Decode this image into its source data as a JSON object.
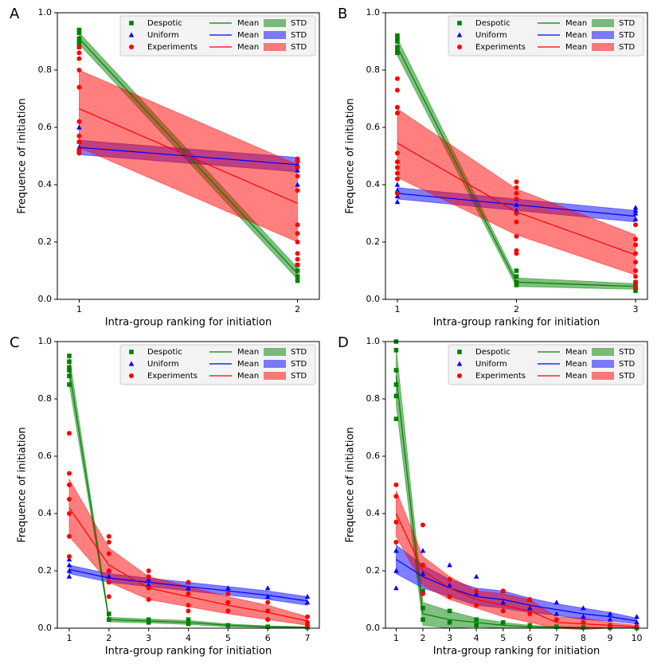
{
  "chart_data": [
    {
      "type": "line",
      "panel": "A",
      "xlabel": "Intra-group ranking for initiation",
      "ylabel": "Frequence of initiation",
      "x": [
        1,
        2
      ],
      "xlim": [
        0.9,
        2.1
      ],
      "xticks": [
        1,
        2
      ],
      "ylim": [
        0,
        1
      ],
      "yticks": [
        {
          "value": 0,
          "label": "0.0"
        },
        {
          "value": 0.2,
          "label": "0.2"
        },
        {
          "value": 0.4,
          "label": "0.4"
        },
        {
          "value": 0.6,
          "label": "0.6"
        },
        {
          "value": 0.8,
          "label": "0.8"
        },
        {
          "value": 1,
          "label": "1.0"
        }
      ],
      "series": [
        {
          "name": "Despotic",
          "mean_label": "Mean",
          "std_label": "STD",
          "color": "#008000",
          "marker": "square",
          "mean": [
            0.91,
            0.09
          ],
          "std": [
            0.02,
            0.02
          ],
          "px": [
            1,
            1,
            1,
            1,
            1,
            1,
            2,
            2,
            2,
            2
          ],
          "py": [
            0.94,
            0.93,
            0.91,
            0.9,
            0.89,
            0.88,
            0.12,
            0.1,
            0.08,
            0.065
          ]
        },
        {
          "name": "Uniform",
          "mean_label": "Mean",
          "std_label": "STD",
          "color": "#0000ff",
          "marker": "triangle",
          "mean": [
            0.53,
            0.47
          ],
          "std": [
            0.025,
            0.025
          ],
          "px": [
            1,
            1,
            1,
            1,
            2,
            2,
            2,
            2
          ],
          "py": [
            0.6,
            0.55,
            0.53,
            0.52,
            0.49,
            0.47,
            0.45,
            0.4
          ]
        },
        {
          "name": "Experiments",
          "mean_label": "Mean",
          "std_label": "STD",
          "color": "#ff0000",
          "marker": "circle",
          "mean": [
            0.665,
            0.335
          ],
          "std": [
            0.135,
            0.135
          ],
          "px": [
            1,
            1,
            1,
            1,
            1,
            1,
            1,
            1,
            1,
            1,
            2,
            2,
            2,
            2,
            2,
            2,
            2,
            2,
            2,
            2,
            2
          ],
          "py": [
            0.88,
            0.86,
            0.84,
            0.8,
            0.74,
            0.62,
            0.57,
            0.55,
            0.52,
            0.51,
            0.49,
            0.48,
            0.46,
            0.43,
            0.38,
            0.26,
            0.23,
            0.2,
            0.16,
            0.14,
            0.12
          ]
        }
      ]
    },
    {
      "type": "line",
      "panel": "B",
      "xlabel": "Intra-group ranking for initiation",
      "ylabel": "Frequence of initiation",
      "x": [
        1,
        2,
        3
      ],
      "xlim": [
        0.9,
        3.1
      ],
      "xticks": [
        1,
        2,
        3
      ],
      "ylim": [
        0,
        1
      ],
      "yticks": [
        {
          "value": 0,
          "label": "0.0"
        },
        {
          "value": 0.2,
          "label": "0.2"
        },
        {
          "value": 0.4,
          "label": "0.4"
        },
        {
          "value": 0.6,
          "label": "0.6"
        },
        {
          "value": 0.8,
          "label": "0.8"
        },
        {
          "value": 1,
          "label": "1.0"
        }
      ],
      "series": [
        {
          "name": "Despotic",
          "mean_label": "Mean",
          "std_label": "STD",
          "color": "#008000",
          "marker": "square",
          "mean": [
            0.88,
            0.06,
            0.045
          ],
          "std": [
            0.03,
            0.015,
            0.01
          ],
          "px": [
            1,
            1,
            1,
            1,
            1,
            1,
            2,
            2,
            2,
            2,
            3,
            3,
            3,
            3
          ],
          "py": [
            0.92,
            0.91,
            0.9,
            0.88,
            0.87,
            0.86,
            0.1,
            0.08,
            0.06,
            0.05,
            0.06,
            0.05,
            0.04,
            0.03
          ]
        },
        {
          "name": "Uniform",
          "mean_label": "Mean",
          "std_label": "STD",
          "color": "#0000ff",
          "marker": "triangle",
          "mean": [
            0.37,
            0.33,
            0.29
          ],
          "std": [
            0.02,
            0.02,
            0.02
          ],
          "px": [
            1,
            1,
            1,
            1,
            2,
            2,
            2,
            3,
            3,
            3,
            3
          ],
          "py": [
            0.4,
            0.38,
            0.36,
            0.34,
            0.35,
            0.33,
            0.31,
            0.32,
            0.31,
            0.3,
            0.28
          ]
        },
        {
          "name": "Experiments",
          "mean_label": "Mean",
          "std_label": "STD",
          "color": "#ff0000",
          "marker": "circle",
          "mean": [
            0.545,
            0.305,
            0.155
          ],
          "std": [
            0.12,
            0.08,
            0.07
          ],
          "px": [
            1,
            1,
            1,
            1,
            1,
            1,
            1,
            1,
            1,
            1,
            2,
            2,
            2,
            2,
            2,
            2,
            2,
            2,
            2,
            3,
            3,
            3,
            3,
            3,
            3,
            3,
            3,
            3
          ],
          "py": [
            0.77,
            0.73,
            0.67,
            0.65,
            0.51,
            0.48,
            0.46,
            0.44,
            0.42,
            0.37,
            0.41,
            0.39,
            0.37,
            0.35,
            0.3,
            0.27,
            0.22,
            0.17,
            0.16,
            0.26,
            0.21,
            0.19,
            0.16,
            0.13,
            0.1,
            0.08,
            0.06,
            0.04
          ]
        }
      ]
    },
    {
      "type": "line",
      "panel": "C",
      "xlabel": "Intra-group ranking for initiation",
      "ylabel": "Frequence of initiation",
      "x": [
        1,
        2,
        3,
        4,
        5,
        6,
        7
      ],
      "xlim": [
        0.7,
        7.3
      ],
      "xticks": [
        1,
        2,
        3,
        4,
        5,
        6,
        7
      ],
      "ylim": [
        0,
        1
      ],
      "yticks": [
        {
          "value": 0,
          "label": "0.0"
        },
        {
          "value": 0.2,
          "label": "0.2"
        },
        {
          "value": 0.4,
          "label": "0.4"
        },
        {
          "value": 0.6,
          "label": "0.6"
        },
        {
          "value": 0.8,
          "label": "0.8"
        },
        {
          "value": 1,
          "label": "1.0"
        }
      ],
      "series": [
        {
          "name": "Despotic",
          "mean_label": "Mean",
          "std_label": "STD",
          "color": "#008000",
          "marker": "square",
          "mean": [
            0.9,
            0.03,
            0.025,
            0.02,
            0.01,
            0.005,
            0.003
          ],
          "std": [
            0.05,
            0.008,
            0.007,
            0.007,
            0.005,
            0.003,
            0.002
          ],
          "px": [
            1,
            1,
            1,
            1,
            1,
            1,
            2,
            2,
            3,
            3,
            4,
            4,
            5,
            6,
            7
          ],
          "py": [
            0.95,
            0.93,
            0.91,
            0.9,
            0.88,
            0.85,
            0.05,
            0.03,
            0.03,
            0.02,
            0.03,
            0.015,
            0.01,
            0.005,
            0.003
          ]
        },
        {
          "name": "Uniform",
          "mean_label": "Mean",
          "std_label": "STD",
          "color": "#0000ff",
          "marker": "triangle",
          "mean": [
            0.205,
            0.175,
            0.16,
            0.145,
            0.13,
            0.115,
            0.095
          ],
          "std": [
            0.015,
            0.015,
            0.015,
            0.015,
            0.015,
            0.015,
            0.015
          ],
          "px": [
            1,
            1,
            1,
            1,
            2,
            2,
            3,
            3,
            4,
            4,
            5,
            5,
            6,
            6,
            7,
            7
          ],
          "py": [
            0.24,
            0.22,
            0.2,
            0.18,
            0.2,
            0.18,
            0.17,
            0.15,
            0.16,
            0.14,
            0.14,
            0.12,
            0.14,
            0.11,
            0.11,
            0.09
          ]
        },
        {
          "name": "Experiments",
          "mean_label": "Mean",
          "std_label": "STD",
          "color": "#ff0000",
          "marker": "circle",
          "mean": [
            0.42,
            0.22,
            0.14,
            0.11,
            0.08,
            0.055,
            0.025
          ],
          "std": [
            0.1,
            0.06,
            0.04,
            0.035,
            0.03,
            0.025,
            0.015
          ],
          "px": [
            1,
            1,
            1,
            1,
            1,
            1,
            1,
            2,
            2,
            2,
            2,
            2,
            2,
            3,
            3,
            3,
            3,
            4,
            4,
            4,
            4,
            5,
            5,
            5,
            6,
            6,
            6,
            7,
            7,
            7
          ],
          "py": [
            0.68,
            0.54,
            0.5,
            0.45,
            0.4,
            0.32,
            0.25,
            0.32,
            0.3,
            0.26,
            0.2,
            0.16,
            0.11,
            0.2,
            0.18,
            0.14,
            0.1,
            0.16,
            0.12,
            0.08,
            0.06,
            0.12,
            0.09,
            0.06,
            0.09,
            0.06,
            0.03,
            0.04,
            0.02,
            0.01
          ]
        }
      ]
    },
    {
      "type": "line",
      "panel": "D",
      "xlabel": "Intra-group ranking for initiation",
      "ylabel": "Frequence of initiation",
      "x": [
        1,
        2,
        3,
        4,
        5,
        6,
        7,
        8,
        9,
        10
      ],
      "xlim": [
        0.6,
        10.4
      ],
      "xticks": [
        1,
        2,
        3,
        4,
        5,
        6,
        7,
        8,
        9,
        10
      ],
      "ylim": [
        0,
        1
      ],
      "yticks": [
        {
          "value": 0,
          "label": "0.0"
        },
        {
          "value": 0.2,
          "label": "0.2"
        },
        {
          "value": 0.4,
          "label": "0.4"
        },
        {
          "value": 0.6,
          "label": "0.6"
        },
        {
          "value": 0.8,
          "label": "0.8"
        },
        {
          "value": 1,
          "label": "1.0"
        }
      ],
      "series": [
        {
          "name": "Despotic",
          "mean_label": "Mean",
          "std_label": "STD",
          "color": "#008000",
          "marker": "square",
          "mean": [
            0.88,
            0.05,
            0.03,
            0.02,
            0.01,
            0.005,
            0.003,
            0.002,
            0.001,
            0.001
          ],
          "std": [
            0.1,
            0.04,
            0.03,
            0.015,
            0.01,
            0.005,
            0.003,
            0.002,
            0.001,
            0.001
          ],
          "px": [
            1,
            1,
            1,
            1,
            1,
            1,
            2,
            2,
            2,
            3,
            3,
            4,
            4,
            5,
            6,
            7,
            8,
            9,
            10
          ],
          "py": [
            1.0,
            0.97,
            0.9,
            0.85,
            0.81,
            0.73,
            0.13,
            0.07,
            0.03,
            0.06,
            0.02,
            0.03,
            0.01,
            0.02,
            0.01,
            0.005,
            0.003,
            0.002,
            0.001
          ]
        },
        {
          "name": "Uniform",
          "mean_label": "Mean",
          "std_label": "STD",
          "color": "#0000ff",
          "marker": "triangle",
          "mean": [
            0.24,
            0.18,
            0.14,
            0.11,
            0.1,
            0.08,
            0.065,
            0.05,
            0.04,
            0.025
          ],
          "std": [
            0.05,
            0.04,
            0.03,
            0.03,
            0.03,
            0.025,
            0.02,
            0.02,
            0.015,
            0.01
          ],
          "px": [
            1,
            1,
            1,
            2,
            2,
            3,
            3,
            4,
            4,
            5,
            5,
            6,
            6,
            7,
            7,
            8,
            8,
            9,
            9,
            10,
            10
          ],
          "py": [
            0.27,
            0.2,
            0.14,
            0.27,
            0.19,
            0.22,
            0.15,
            0.18,
            0.12,
            0.13,
            0.09,
            0.1,
            0.07,
            0.09,
            0.05,
            0.07,
            0.04,
            0.05,
            0.03,
            0.04,
            0.02
          ]
        },
        {
          "name": "Experiments",
          "mean_label": "Mean",
          "std_label": "STD",
          "color": "#ff0000",
          "marker": "circle",
          "mean": [
            0.4,
            0.2,
            0.14,
            0.1,
            0.08,
            0.06,
            0.02,
            0.015,
            0.01,
            0.005
          ],
          "std": [
            0.08,
            0.05,
            0.04,
            0.03,
            0.04,
            0.04,
            0.02,
            0.02,
            0.01,
            0.005
          ],
          "px": [
            1,
            1,
            1,
            1,
            2,
            2,
            2,
            3,
            3,
            4,
            4,
            5,
            5,
            6,
            6,
            7,
            8,
            9,
            10
          ],
          "py": [
            0.5,
            0.46,
            0.37,
            0.3,
            0.36,
            0.22,
            0.12,
            0.17,
            0.11,
            0.13,
            0.08,
            0.13,
            0.06,
            0.1,
            0.05,
            0.03,
            0.02,
            0.01,
            0.005
          ]
        }
      ]
    }
  ]
}
